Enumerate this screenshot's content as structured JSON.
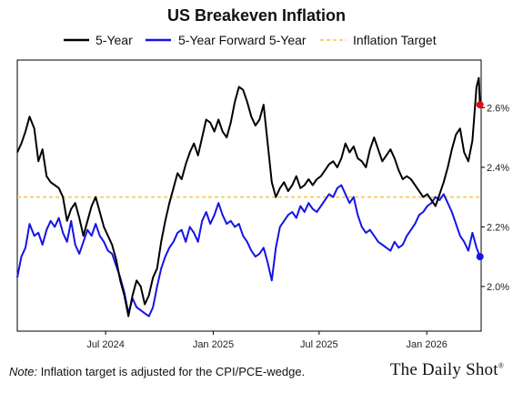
{
  "chart_data": {
    "type": "line",
    "title": "US Breakeven Inflation",
    "x_ticks": [
      "Jul 2024",
      "Jan 2025",
      "Jul 2025",
      "Jan 2026"
    ],
    "x_range": [
      "2024-02-01",
      "2026-04-04"
    ],
    "ylim": [
      1.85,
      2.76
    ],
    "y_ticks": [
      2.0,
      2.2,
      2.4,
      2.6
    ],
    "y_tick_labels": [
      "2.0%",
      "2.2%",
      "2.4%",
      "2.6%"
    ],
    "grid": false,
    "legend_position": "top",
    "reference_line": {
      "name": "Inflation Target",
      "y": 2.3,
      "color": "#f5c542",
      "style": "dashed"
    },
    "series": [
      {
        "name": "5-Year",
        "color": "#000000",
        "end_marker_color": "#e01010",
        "points": [
          [
            "2024-02-01",
            2.45
          ],
          [
            "2024-02-08",
            2.48
          ],
          [
            "2024-02-15",
            2.52
          ],
          [
            "2024-02-22",
            2.57
          ],
          [
            "2024-03-01",
            2.53
          ],
          [
            "2024-03-08",
            2.42
          ],
          [
            "2024-03-15",
            2.46
          ],
          [
            "2024-03-22",
            2.37
          ],
          [
            "2024-03-29",
            2.35
          ],
          [
            "2024-04-05",
            2.34
          ],
          [
            "2024-04-12",
            2.33
          ],
          [
            "2024-04-19",
            2.3
          ],
          [
            "2024-04-26",
            2.22
          ],
          [
            "2024-05-03",
            2.26
          ],
          [
            "2024-05-10",
            2.28
          ],
          [
            "2024-05-17",
            2.23
          ],
          [
            "2024-05-24",
            2.17
          ],
          [
            "2024-05-31",
            2.22
          ],
          [
            "2024-06-07",
            2.27
          ],
          [
            "2024-06-14",
            2.3
          ],
          [
            "2024-06-21",
            2.25
          ],
          [
            "2024-06-28",
            2.2
          ],
          [
            "2024-07-05",
            2.17
          ],
          [
            "2024-07-12",
            2.14
          ],
          [
            "2024-07-19",
            2.09
          ],
          [
            "2024-07-26",
            2.02
          ],
          [
            "2024-08-02",
            1.97
          ],
          [
            "2024-08-09",
            1.9
          ],
          [
            "2024-08-16",
            1.97
          ],
          [
            "2024-08-23",
            2.02
          ],
          [
            "2024-08-30",
            2.0
          ],
          [
            "2024-09-06",
            1.94
          ],
          [
            "2024-09-13",
            1.97
          ],
          [
            "2024-09-20",
            2.03
          ],
          [
            "2024-09-27",
            2.06
          ],
          [
            "2024-10-04",
            2.15
          ],
          [
            "2024-10-11",
            2.22
          ],
          [
            "2024-10-18",
            2.28
          ],
          [
            "2024-10-25",
            2.33
          ],
          [
            "2024-11-01",
            2.38
          ],
          [
            "2024-11-08",
            2.36
          ],
          [
            "2024-11-15",
            2.41
          ],
          [
            "2024-11-22",
            2.45
          ],
          [
            "2024-11-29",
            2.48
          ],
          [
            "2024-12-06",
            2.44
          ],
          [
            "2024-12-13",
            2.5
          ],
          [
            "2024-12-20",
            2.56
          ],
          [
            "2024-12-27",
            2.55
          ],
          [
            "2025-01-03",
            2.52
          ],
          [
            "2025-01-10",
            2.56
          ],
          [
            "2025-01-17",
            2.52
          ],
          [
            "2025-01-24",
            2.5
          ],
          [
            "2025-01-31",
            2.55
          ],
          [
            "2025-02-07",
            2.62
          ],
          [
            "2025-02-14",
            2.67
          ],
          [
            "2025-02-21",
            2.66
          ],
          [
            "2025-02-28",
            2.62
          ],
          [
            "2025-03-07",
            2.57
          ],
          [
            "2025-03-14",
            2.54
          ],
          [
            "2025-03-21",
            2.56
          ],
          [
            "2025-03-28",
            2.61
          ],
          [
            "2025-04-04",
            2.48
          ],
          [
            "2025-04-11",
            2.35
          ],
          [
            "2025-04-18",
            2.3
          ],
          [
            "2025-04-25",
            2.33
          ],
          [
            "2025-05-02",
            2.35
          ],
          [
            "2025-05-09",
            2.32
          ],
          [
            "2025-05-16",
            2.34
          ],
          [
            "2025-05-23",
            2.37
          ],
          [
            "2025-05-30",
            2.33
          ],
          [
            "2025-06-06",
            2.34
          ],
          [
            "2025-06-13",
            2.36
          ],
          [
            "2025-06-20",
            2.34
          ],
          [
            "2025-06-27",
            2.36
          ],
          [
            "2025-07-04",
            2.37
          ],
          [
            "2025-07-11",
            2.39
          ],
          [
            "2025-07-18",
            2.41
          ],
          [
            "2025-07-25",
            2.42
          ],
          [
            "2025-08-01",
            2.4
          ],
          [
            "2025-08-08",
            2.43
          ],
          [
            "2025-08-15",
            2.48
          ],
          [
            "2025-08-22",
            2.45
          ],
          [
            "2025-08-29",
            2.47
          ],
          [
            "2025-09-05",
            2.43
          ],
          [
            "2025-09-12",
            2.42
          ],
          [
            "2025-09-19",
            2.4
          ],
          [
            "2025-09-26",
            2.46
          ],
          [
            "2025-10-03",
            2.5
          ],
          [
            "2025-10-10",
            2.46
          ],
          [
            "2025-10-17",
            2.42
          ],
          [
            "2025-10-24",
            2.44
          ],
          [
            "2025-10-31",
            2.46
          ],
          [
            "2025-11-07",
            2.43
          ],
          [
            "2025-11-14",
            2.39
          ],
          [
            "2025-11-21",
            2.36
          ],
          [
            "2025-11-28",
            2.37
          ],
          [
            "2025-12-05",
            2.36
          ],
          [
            "2025-12-12",
            2.34
          ],
          [
            "2025-12-19",
            2.32
          ],
          [
            "2025-12-26",
            2.3
          ],
          [
            "2026-01-02",
            2.31
          ],
          [
            "2026-01-09",
            2.29
          ],
          [
            "2026-01-16",
            2.27
          ],
          [
            "2026-01-23",
            2.31
          ],
          [
            "2026-01-30",
            2.35
          ],
          [
            "2026-02-06",
            2.4
          ],
          [
            "2026-02-13",
            2.46
          ],
          [
            "2026-02-20",
            2.51
          ],
          [
            "2026-02-27",
            2.53
          ],
          [
            "2026-03-06",
            2.45
          ],
          [
            "2026-03-13",
            2.42
          ],
          [
            "2026-03-20",
            2.49
          ],
          [
            "2026-03-27",
            2.67
          ],
          [
            "2026-03-31",
            2.7
          ],
          [
            "2026-04-02",
            2.61
          ]
        ]
      },
      {
        "name": "5-Year Forward 5-Year",
        "color": "#1414e8",
        "end_marker_color": "#1414e8",
        "points": [
          [
            "2024-02-01",
            2.03
          ],
          [
            "2024-02-08",
            2.1
          ],
          [
            "2024-02-15",
            2.13
          ],
          [
            "2024-02-22",
            2.21
          ],
          [
            "2024-03-01",
            2.17
          ],
          [
            "2024-03-08",
            2.18
          ],
          [
            "2024-03-15",
            2.14
          ],
          [
            "2024-03-22",
            2.19
          ],
          [
            "2024-03-29",
            2.22
          ],
          [
            "2024-04-05",
            2.2
          ],
          [
            "2024-04-12",
            2.23
          ],
          [
            "2024-04-19",
            2.18
          ],
          [
            "2024-04-26",
            2.15
          ],
          [
            "2024-05-03",
            2.22
          ],
          [
            "2024-05-10",
            2.14
          ],
          [
            "2024-05-17",
            2.11
          ],
          [
            "2024-05-24",
            2.15
          ],
          [
            "2024-05-31",
            2.19
          ],
          [
            "2024-06-07",
            2.17
          ],
          [
            "2024-06-14",
            2.21
          ],
          [
            "2024-06-21",
            2.17
          ],
          [
            "2024-06-28",
            2.15
          ],
          [
            "2024-07-05",
            2.12
          ],
          [
            "2024-07-12",
            2.11
          ],
          [
            "2024-07-19",
            2.07
          ],
          [
            "2024-07-26",
            2.03
          ],
          [
            "2024-08-02",
            1.98
          ],
          [
            "2024-08-09",
            1.91
          ],
          [
            "2024-08-16",
            1.96
          ],
          [
            "2024-08-23",
            1.93
          ],
          [
            "2024-08-30",
            1.92
          ],
          [
            "2024-09-06",
            1.91
          ],
          [
            "2024-09-13",
            1.9
          ],
          [
            "2024-09-20",
            1.93
          ],
          [
            "2024-09-27",
            2.0
          ],
          [
            "2024-10-04",
            2.06
          ],
          [
            "2024-10-11",
            2.1
          ],
          [
            "2024-10-18",
            2.13
          ],
          [
            "2024-10-25",
            2.15
          ],
          [
            "2024-11-01",
            2.18
          ],
          [
            "2024-11-08",
            2.19
          ],
          [
            "2024-11-15",
            2.15
          ],
          [
            "2024-11-22",
            2.2
          ],
          [
            "2024-11-29",
            2.18
          ],
          [
            "2024-12-06",
            2.15
          ],
          [
            "2024-12-13",
            2.22
          ],
          [
            "2024-12-20",
            2.25
          ],
          [
            "2024-12-27",
            2.21
          ],
          [
            "2025-01-03",
            2.24
          ],
          [
            "2025-01-10",
            2.28
          ],
          [
            "2025-01-17",
            2.24
          ],
          [
            "2025-01-24",
            2.21
          ],
          [
            "2025-01-31",
            2.22
          ],
          [
            "2025-02-07",
            2.2
          ],
          [
            "2025-02-14",
            2.21
          ],
          [
            "2025-02-21",
            2.17
          ],
          [
            "2025-02-28",
            2.15
          ],
          [
            "2025-03-07",
            2.12
          ],
          [
            "2025-03-14",
            2.1
          ],
          [
            "2025-03-21",
            2.11
          ],
          [
            "2025-03-28",
            2.13
          ],
          [
            "2025-04-04",
            2.08
          ],
          [
            "2025-04-11",
            2.02
          ],
          [
            "2025-04-18",
            2.13
          ],
          [
            "2025-04-25",
            2.2
          ],
          [
            "2025-05-02",
            2.22
          ],
          [
            "2025-05-09",
            2.24
          ],
          [
            "2025-05-16",
            2.25
          ],
          [
            "2025-05-23",
            2.23
          ],
          [
            "2025-05-30",
            2.27
          ],
          [
            "2025-06-06",
            2.25
          ],
          [
            "2025-06-13",
            2.28
          ],
          [
            "2025-06-20",
            2.26
          ],
          [
            "2025-06-27",
            2.25
          ],
          [
            "2025-07-04",
            2.27
          ],
          [
            "2025-07-11",
            2.29
          ],
          [
            "2025-07-18",
            2.31
          ],
          [
            "2025-07-25",
            2.3
          ],
          [
            "2025-08-01",
            2.33
          ],
          [
            "2025-08-08",
            2.34
          ],
          [
            "2025-08-15",
            2.31
          ],
          [
            "2025-08-22",
            2.28
          ],
          [
            "2025-08-29",
            2.3
          ],
          [
            "2025-09-05",
            2.24
          ],
          [
            "2025-09-12",
            2.2
          ],
          [
            "2025-09-19",
            2.18
          ],
          [
            "2025-09-26",
            2.19
          ],
          [
            "2025-10-03",
            2.17
          ],
          [
            "2025-10-10",
            2.15
          ],
          [
            "2025-10-17",
            2.14
          ],
          [
            "2025-10-24",
            2.13
          ],
          [
            "2025-10-31",
            2.12
          ],
          [
            "2025-11-07",
            2.15
          ],
          [
            "2025-11-14",
            2.13
          ],
          [
            "2025-11-21",
            2.14
          ],
          [
            "2025-11-28",
            2.17
          ],
          [
            "2025-12-05",
            2.19
          ],
          [
            "2025-12-12",
            2.21
          ],
          [
            "2025-12-19",
            2.24
          ],
          [
            "2025-12-26",
            2.25
          ],
          [
            "2026-01-02",
            2.27
          ],
          [
            "2026-01-09",
            2.28
          ],
          [
            "2026-01-16",
            2.3
          ],
          [
            "2026-01-23",
            2.29
          ],
          [
            "2026-01-30",
            2.31
          ],
          [
            "2026-02-06",
            2.28
          ],
          [
            "2026-02-13",
            2.25
          ],
          [
            "2026-02-20",
            2.21
          ],
          [
            "2026-02-27",
            2.17
          ],
          [
            "2026-03-06",
            2.15
          ],
          [
            "2026-03-13",
            2.12
          ],
          [
            "2026-03-20",
            2.18
          ],
          [
            "2026-03-27",
            2.13
          ],
          [
            "2026-03-31",
            2.11
          ],
          [
            "2026-04-02",
            2.1
          ]
        ]
      }
    ]
  },
  "footer": {
    "note_label": "Note:",
    "note_text": " Inflation target is adjusted for the CPI/PCE-wedge.",
    "brand": "The Daily Shot",
    "brand_mark": "®"
  }
}
